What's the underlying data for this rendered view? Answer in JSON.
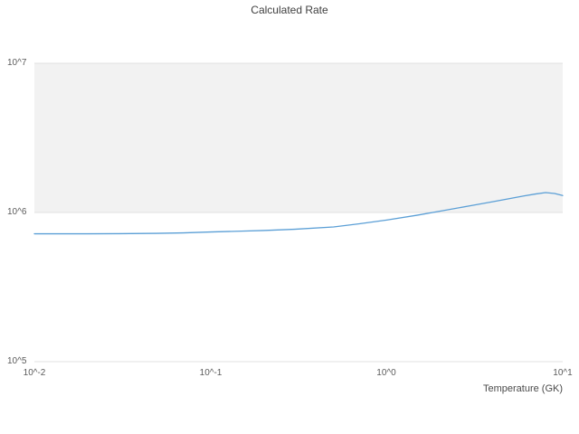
{
  "chart_data": {
    "type": "line",
    "title": "Calculated Rate",
    "xlabel": "Temperature (GK)",
    "ylabel": "",
    "x_scale": "log",
    "y_scale": "log",
    "xlim": [
      0.01,
      10
    ],
    "ylim": [
      100000,
      10000000
    ],
    "x_ticks": [
      "10^-2",
      "10^-1",
      "10^0",
      "10^1"
    ],
    "y_ticks": [
      "10^5",
      "10^6",
      "10^7"
    ],
    "grid": "horizontal-decades",
    "legend": "none",
    "shaded_band": {
      "from": 1000000,
      "to": 10000000,
      "color": "#f2f2f2"
    },
    "gridline_color": "#e0e0e0",
    "series": [
      {
        "name": "Calculated Rate",
        "color": "#5b9fd6",
        "x": [
          0.01,
          0.02,
          0.03,
          0.05,
          0.07,
          0.1,
          0.15,
          0.2,
          0.3,
          0.5,
          0.7,
          1.0,
          1.5,
          2.0,
          3.0,
          4.0,
          5.0,
          6.0,
          7.0,
          8.0,
          9.0,
          10.0
        ],
        "y": [
          720000,
          720000,
          721000,
          725000,
          730000,
          740000,
          750000,
          757000,
          772000,
          800000,
          840000,
          890000,
          960000,
          1020000,
          1110000,
          1180000,
          1240000,
          1290000,
          1330000,
          1360000,
          1340000,
          1300000
        ]
      }
    ]
  }
}
